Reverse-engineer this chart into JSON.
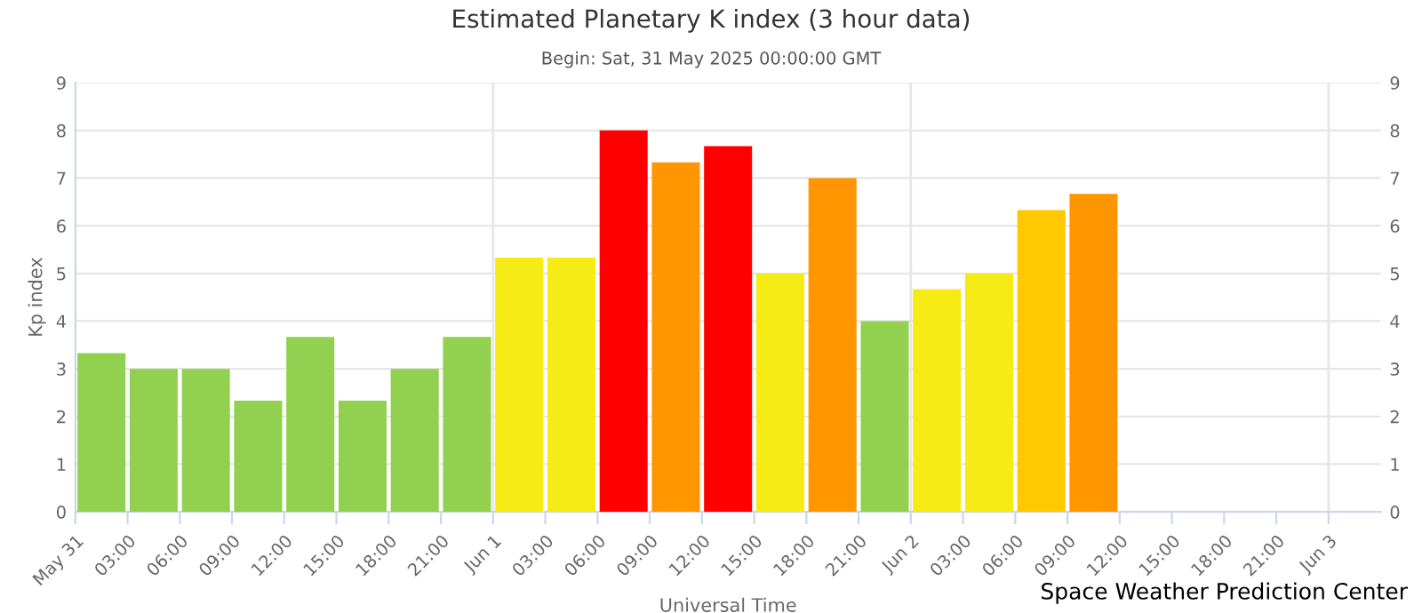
{
  "chart_data": {
    "type": "bar",
    "title": "Estimated Planetary K index (3 hour data)",
    "subtitle": "Begin: Sat, 31 May 2025 00:00:00 GMT",
    "xlabel": "Universal Time",
    "ylabel": "Kp index",
    "x": [
      "2025-05-31T01:30",
      "2025-05-31T04:30",
      "2025-05-31T07:30",
      "2025-05-31T10:30",
      "2025-05-31T13:30",
      "2025-05-31T16:30",
      "2025-05-31T19:30",
      "2025-05-31T22:30",
      "2025-06-01T01:30",
      "2025-06-01T04:30",
      "2025-06-01T07:30",
      "2025-06-01T10:30",
      "2025-06-01T13:30",
      "2025-06-01T16:30",
      "2025-06-01T19:30",
      "2025-06-01T22:30",
      "2025-06-02T01:30",
      "2025-06-02T04:30",
      "2025-06-02T07:30",
      "2025-06-02T10:30"
    ],
    "values": [
      3.33,
      3,
      3,
      2.33,
      3.67,
      2.33,
      3,
      3.67,
      5.33,
      5.33,
      8,
      7.33,
      7.67,
      5,
      7,
      4,
      4.67,
      5,
      6.33,
      6.67
    ],
    "colors": [
      "#92d050",
      "#92d050",
      "#92d050",
      "#92d050",
      "#92d050",
      "#92d050",
      "#92d050",
      "#92d050",
      "#f6eb14",
      "#f6eb14",
      "#ff0000",
      "#ff9600",
      "#ff0000",
      "#f6eb14",
      "#ff9600",
      "#92d050",
      "#f6eb14",
      "#f6eb14",
      "#ffc800",
      "#ff9600"
    ],
    "xlim": [
      "2025-05-31T00:00",
      "2025-06-03T03:00"
    ],
    "xticks": [
      {
        "value": "2025-05-31T00:00",
        "label": "May 31"
      },
      {
        "value": "2025-05-31T03:00",
        "label": "03:00"
      },
      {
        "value": "2025-05-31T06:00",
        "label": "06:00"
      },
      {
        "value": "2025-05-31T09:00",
        "label": "09:00"
      },
      {
        "value": "2025-05-31T12:00",
        "label": "12:00"
      },
      {
        "value": "2025-05-31T15:00",
        "label": "15:00"
      },
      {
        "value": "2025-05-31T18:00",
        "label": "18:00"
      },
      {
        "value": "2025-05-31T21:00",
        "label": "21:00"
      },
      {
        "value": "2025-06-01T00:00",
        "label": "Jun 1"
      },
      {
        "value": "2025-06-01T03:00",
        "label": "03:00"
      },
      {
        "value": "2025-06-01T06:00",
        "label": "06:00"
      },
      {
        "value": "2025-06-01T09:00",
        "label": "09:00"
      },
      {
        "value": "2025-06-01T12:00",
        "label": "12:00"
      },
      {
        "value": "2025-06-01T15:00",
        "label": "15:00"
      },
      {
        "value": "2025-06-01T18:00",
        "label": "18:00"
      },
      {
        "value": "2025-06-01T21:00",
        "label": "21:00"
      },
      {
        "value": "2025-06-02T00:00",
        "label": "Jun 2"
      },
      {
        "value": "2025-06-02T03:00",
        "label": "03:00"
      },
      {
        "value": "2025-06-02T06:00",
        "label": "06:00"
      },
      {
        "value": "2025-06-02T09:00",
        "label": "09:00"
      },
      {
        "value": "2025-06-02T12:00",
        "label": "12:00"
      },
      {
        "value": "2025-06-02T15:00",
        "label": "15:00"
      },
      {
        "value": "2025-06-02T18:00",
        "label": "18:00"
      },
      {
        "value": "2025-06-02T21:00",
        "label": "21:00"
      },
      {
        "value": "2025-06-03T00:00",
        "label": "Jun 3"
      }
    ],
    "ylim": [
      0,
      9
    ],
    "yticks": [
      0,
      1,
      2,
      3,
      4,
      5,
      6,
      7,
      8,
      9
    ],
    "y2lim": [
      0,
      9
    ],
    "y2ticks": [
      0,
      1,
      2,
      3,
      4,
      5,
      6,
      7,
      8,
      9
    ],
    "grid": "y",
    "ref_lines": [
      {
        "axis": "x",
        "value": "2025-06-01T00:00",
        "color": "#e6e6e6"
      },
      {
        "axis": "x",
        "value": "2025-06-02T00:00",
        "color": "#e6e6e6"
      },
      {
        "axis": "x",
        "value": "2025-06-03T00:00",
        "color": "#e6e6e6"
      }
    ],
    "annotations": [
      "Space Weather Prediction Center"
    ]
  }
}
